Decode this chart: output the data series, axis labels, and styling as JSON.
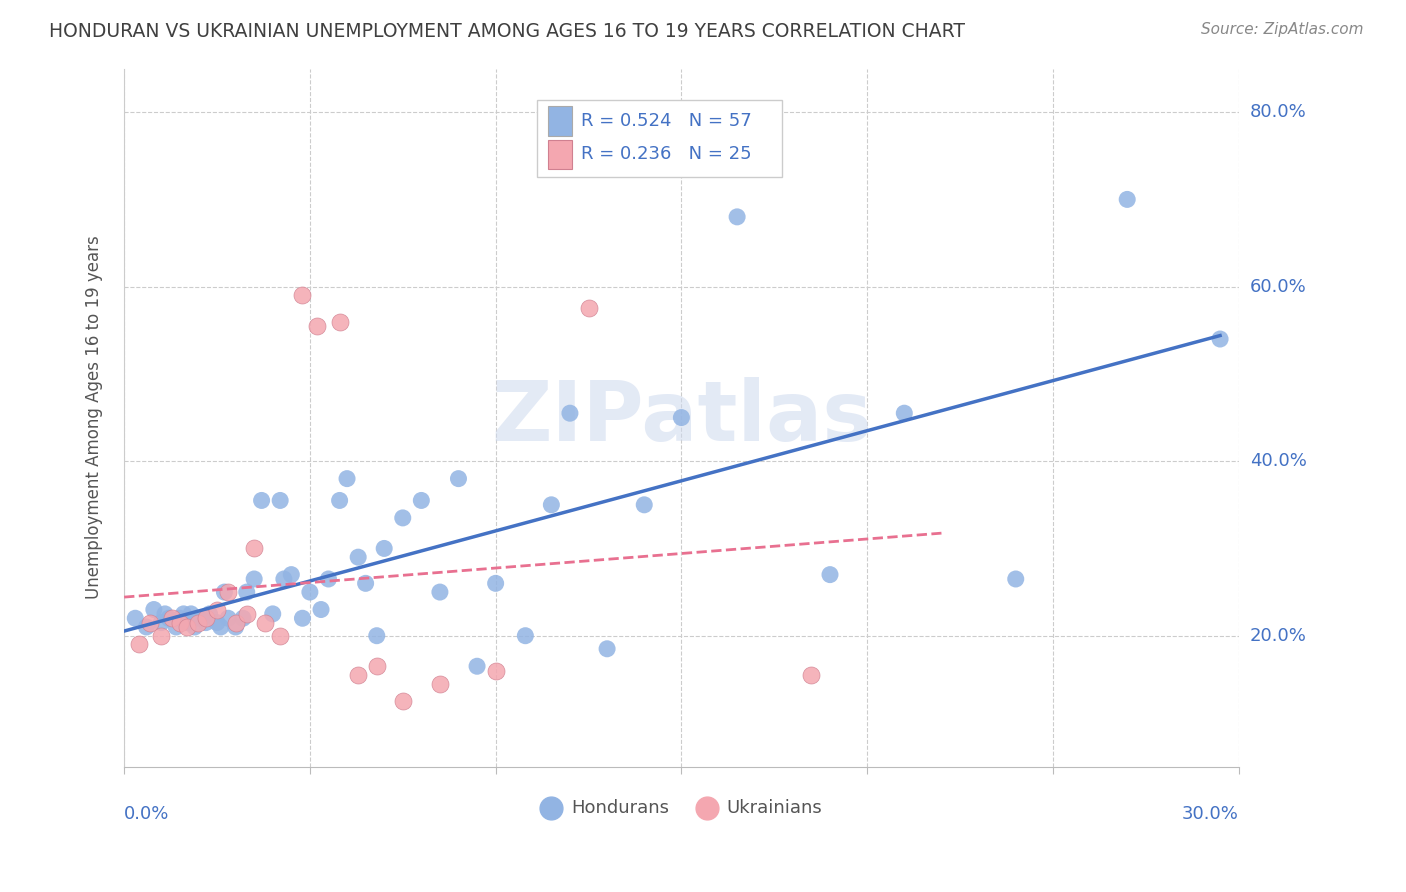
{
  "title": "HONDURAN VS UKRAINIAN UNEMPLOYMENT AMONG AGES 16 TO 19 YEARS CORRELATION CHART",
  "source": "Source: ZipAtlas.com",
  "ylabel": "Unemployment Among Ages 16 to 19 years",
  "xlim": [
    0.0,
    0.3
  ],
  "ylim": [
    0.05,
    0.85
  ],
  "yticks": [
    0.2,
    0.4,
    0.6,
    0.8
  ],
  "ytick_labels": [
    "20.0%",
    "40.0%",
    "60.0%",
    "80.0%"
  ],
  "r_honduran": "R = 0.524",
  "n_honduran": "N = 57",
  "r_ukrainian": "R = 0.236",
  "n_ukrainian": "N = 25",
  "legend_label_1": "Hondurans",
  "legend_label_2": "Ukrainians",
  "watermark": "ZIPatlas",
  "blue_color": "#92b4e3",
  "pink_color": "#f4a7b0",
  "line_blue": "#4472c4",
  "line_pink_solid": "#e87090",
  "title_color": "#404040",
  "axis_label_color": "#4472c4",
  "background_color": "#ffffff",
  "honduran_x": [
    0.003,
    0.006,
    0.008,
    0.01,
    0.011,
    0.012,
    0.014,
    0.015,
    0.016,
    0.017,
    0.018,
    0.019,
    0.02,
    0.021,
    0.022,
    0.023,
    0.025,
    0.026,
    0.027,
    0.028,
    0.03,
    0.032,
    0.033,
    0.035,
    0.037,
    0.04,
    0.042,
    0.043,
    0.045,
    0.048,
    0.05,
    0.053,
    0.055,
    0.058,
    0.06,
    0.063,
    0.065,
    0.068,
    0.07,
    0.075,
    0.08,
    0.085,
    0.09,
    0.095,
    0.1,
    0.108,
    0.115,
    0.12,
    0.13,
    0.14,
    0.15,
    0.165,
    0.19,
    0.21,
    0.24,
    0.27,
    0.295
  ],
  "honduran_y": [
    0.22,
    0.21,
    0.23,
    0.215,
    0.225,
    0.22,
    0.21,
    0.22,
    0.225,
    0.215,
    0.225,
    0.21,
    0.22,
    0.22,
    0.215,
    0.225,
    0.215,
    0.21,
    0.25,
    0.22,
    0.21,
    0.22,
    0.25,
    0.265,
    0.355,
    0.225,
    0.355,
    0.265,
    0.27,
    0.22,
    0.25,
    0.23,
    0.265,
    0.355,
    0.38,
    0.29,
    0.26,
    0.2,
    0.3,
    0.335,
    0.355,
    0.25,
    0.38,
    0.165,
    0.26,
    0.2,
    0.35,
    0.455,
    0.185,
    0.35,
    0.45,
    0.68,
    0.27,
    0.455,
    0.265,
    0.7,
    0.54
  ],
  "ukrainian_x": [
    0.004,
    0.007,
    0.01,
    0.013,
    0.015,
    0.017,
    0.02,
    0.022,
    0.025,
    0.028,
    0.03,
    0.033,
    0.035,
    0.038,
    0.042,
    0.048,
    0.052,
    0.058,
    0.063,
    0.068,
    0.075,
    0.085,
    0.1,
    0.125,
    0.185
  ],
  "ukrainian_y": [
    0.19,
    0.215,
    0.2,
    0.22,
    0.215,
    0.21,
    0.215,
    0.22,
    0.23,
    0.25,
    0.215,
    0.225,
    0.3,
    0.215,
    0.2,
    0.59,
    0.555,
    0.56,
    0.155,
    0.165,
    0.125,
    0.145,
    0.16,
    0.575,
    0.155
  ]
}
